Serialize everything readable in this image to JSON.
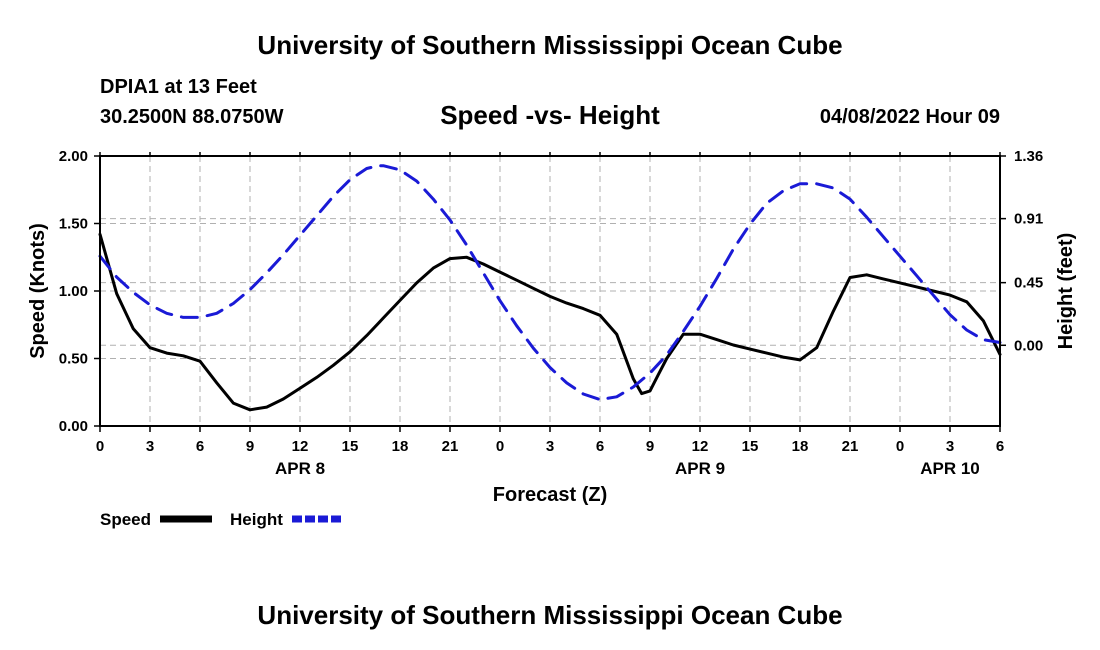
{
  "header": {
    "title": "University of Southern Mississippi Ocean Cube",
    "station": "DPIA1 at 13 Feet",
    "coords": "30.2500N  88.0750W",
    "date": "04/08/2022 Hour 09"
  },
  "footer": {
    "title": "University of Southern Mississippi Ocean Cube"
  },
  "colors": {
    "speed": "#000000",
    "height": "#1a1ad6",
    "grid": "#b0b0b0"
  },
  "chart_data": {
    "type": "line",
    "title": "Speed -vs- Height",
    "xlabel": "Forecast (Z)",
    "ylabel": "Speed (Knots)",
    "y2label": "Height (feet)",
    "xlim": [
      0,
      54
    ],
    "ylim": [
      0,
      2
    ],
    "y2lim": [
      -0.58,
      1.36
    ],
    "x_ticks": [
      0,
      3,
      6,
      9,
      12,
      15,
      18,
      21,
      24,
      27,
      30,
      33,
      36,
      39,
      42,
      45,
      48,
      51,
      54
    ],
    "x_tick_labels": [
      "0",
      "3",
      "6",
      "9",
      "12",
      "15",
      "18",
      "21",
      "0",
      "3",
      "6",
      "9",
      "12",
      "15",
      "18",
      "21",
      "0",
      "3",
      "6"
    ],
    "y_ticks": [
      0,
      0.5,
      1,
      1.5,
      2
    ],
    "y_tick_labels": [
      "0.00",
      "0.50",
      "1.00",
      "1.50",
      "2.00"
    ],
    "y2_ticks": [
      0,
      0.45,
      0.91,
      1.36
    ],
    "y2_tick_labels": [
      "0.00",
      "0.45",
      "0.91",
      "1.36"
    ],
    "date_labels": [
      {
        "x": 12,
        "label": "APR 8"
      },
      {
        "x": 36,
        "label": "APR 9"
      },
      {
        "x": 51,
        "label": "APR 10"
      }
    ],
    "grid": true,
    "legend_position": "bottom-left",
    "series": [
      {
        "name": "Speed",
        "axis": "left",
        "style": "solid",
        "x": [
          0,
          1,
          2,
          3,
          4,
          5,
          6,
          7,
          8,
          9,
          10,
          11,
          12,
          13,
          14,
          15,
          16,
          17,
          18,
          19,
          20,
          21,
          22,
          23,
          24,
          25,
          26,
          27,
          28,
          29,
          30,
          31,
          32,
          32.5,
          33,
          33.5,
          34,
          35,
          36,
          37,
          38,
          39,
          40,
          41,
          42,
          43,
          44,
          45,
          46,
          47,
          48,
          49,
          50,
          51,
          52,
          53,
          54
        ],
        "values": [
          1.42,
          0.98,
          0.72,
          0.58,
          0.54,
          0.52,
          0.48,
          0.32,
          0.17,
          0.12,
          0.14,
          0.2,
          0.28,
          0.36,
          0.45,
          0.55,
          0.67,
          0.8,
          0.93,
          1.06,
          1.17,
          1.24,
          1.25,
          1.2,
          1.14,
          1.08,
          1.02,
          0.96,
          0.91,
          0.87,
          0.82,
          0.68,
          0.35,
          0.24,
          0.26,
          0.38,
          0.5,
          0.68,
          0.68,
          0.64,
          0.6,
          0.57,
          0.54,
          0.51,
          0.49,
          0.58,
          0.85,
          1.1,
          1.12,
          1.09,
          1.06,
          1.03,
          1.0,
          0.97,
          0.92,
          0.78,
          0.53
        ]
      },
      {
        "name": "Height",
        "axis": "right",
        "style": "dashed",
        "x": [
          0,
          1,
          2,
          3,
          4,
          5,
          6,
          7,
          8,
          9,
          10,
          11,
          12,
          13,
          14,
          15,
          16,
          16.7,
          17,
          18,
          19,
          20,
          21,
          22,
          23,
          24,
          25,
          26,
          27,
          28,
          29,
          30,
          31,
          32,
          33,
          34,
          35,
          36,
          37,
          38,
          39,
          40,
          41,
          42,
          43,
          44,
          45,
          46,
          47,
          48,
          49,
          50,
          51,
          52,
          53,
          54
        ],
        "values": [
          0.64,
          0.49,
          0.38,
          0.29,
          0.23,
          0.2,
          0.2,
          0.23,
          0.3,
          0.4,
          0.52,
          0.65,
          0.79,
          0.93,
          1.07,
          1.19,
          1.27,
          1.29,
          1.29,
          1.26,
          1.18,
          1.05,
          0.9,
          0.72,
          0.52,
          0.32,
          0.14,
          -0.02,
          -0.16,
          -0.27,
          -0.35,
          -0.39,
          -0.37,
          -0.3,
          -0.2,
          -0.07,
          0.1,
          0.28,
          0.48,
          0.69,
          0.87,
          1.02,
          1.11,
          1.16,
          1.16,
          1.13,
          1.05,
          0.92,
          0.78,
          0.64,
          0.5,
          0.36,
          0.22,
          0.11,
          0.04,
          0.02
        ]
      }
    ]
  }
}
